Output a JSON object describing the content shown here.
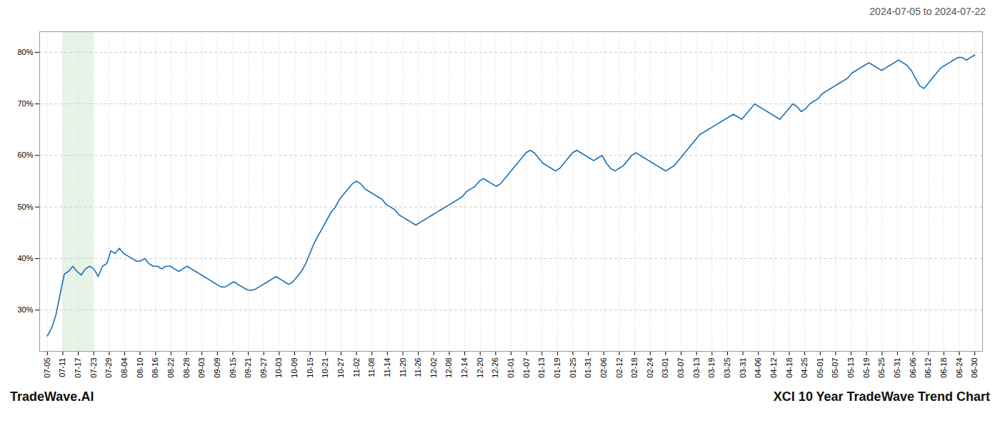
{
  "chart_data": {
    "type": "line",
    "title": "XCI 10 Year TradeWave Trend Chart",
    "subtitle": "2024-07-05 to 2024-07-22",
    "annotations": [
      "TradeWave.AI"
    ],
    "color": "#1a6eb5",
    "grid": true,
    "highlight": {
      "start": 1,
      "end": 3,
      "color": "#c8e6c9"
    },
    "xlim": [
      -0.5,
      60.5
    ],
    "xticks": [
      {
        "value": 0,
        "label": "07-05"
      },
      {
        "value": 1,
        "label": "07-11"
      },
      {
        "value": 2,
        "label": "07-17"
      },
      {
        "value": 3,
        "label": "07-23"
      },
      {
        "value": 4,
        "label": "07-29"
      },
      {
        "value": 5,
        "label": "08-04"
      },
      {
        "value": 6,
        "label": "08-10"
      },
      {
        "value": 7,
        "label": "08-16"
      },
      {
        "value": 8,
        "label": "08-22"
      },
      {
        "value": 9,
        "label": "08-28"
      },
      {
        "value": 10,
        "label": "09-03"
      },
      {
        "value": 11,
        "label": "09-09"
      },
      {
        "value": 12,
        "label": "09-15"
      },
      {
        "value": 13,
        "label": "09-21"
      },
      {
        "value": 14,
        "label": "09-27"
      },
      {
        "value": 15,
        "label": "10-03"
      },
      {
        "value": 16,
        "label": "10-09"
      },
      {
        "value": 17,
        "label": "10-15"
      },
      {
        "value": 18,
        "label": "10-21"
      },
      {
        "value": 19,
        "label": "10-27"
      },
      {
        "value": 20,
        "label": "11-02"
      },
      {
        "value": 21,
        "label": "11-08"
      },
      {
        "value": 22,
        "label": "11-14"
      },
      {
        "value": 23,
        "label": "11-20"
      },
      {
        "value": 24,
        "label": "11-26"
      },
      {
        "value": 25,
        "label": "12-02"
      },
      {
        "value": 26,
        "label": "12-08"
      },
      {
        "value": 27,
        "label": "12-14"
      },
      {
        "value": 28,
        "label": "12-20"
      },
      {
        "value": 29,
        "label": "12-26"
      },
      {
        "value": 30,
        "label": "01-01"
      },
      {
        "value": 31,
        "label": "01-07"
      },
      {
        "value": 32,
        "label": "01-13"
      },
      {
        "value": 33,
        "label": "01-19"
      },
      {
        "value": 34,
        "label": "01-25"
      },
      {
        "value": 35,
        "label": "01-31"
      },
      {
        "value": 36,
        "label": "02-06"
      },
      {
        "value": 37,
        "label": "02-12"
      },
      {
        "value": 38,
        "label": "02-18"
      },
      {
        "value": 39,
        "label": "02-24"
      },
      {
        "value": 40,
        "label": "03-01"
      },
      {
        "value": 41,
        "label": "03-07"
      },
      {
        "value": 42,
        "label": "03-13"
      },
      {
        "value": 43,
        "label": "03-19"
      },
      {
        "value": 44,
        "label": "03-25"
      },
      {
        "value": 45,
        "label": "03-31"
      },
      {
        "value": 46,
        "label": "04-06"
      },
      {
        "value": 47,
        "label": "04-12"
      },
      {
        "value": 48,
        "label": "04-18"
      },
      {
        "value": 49,
        "label": "04-25"
      },
      {
        "value": 50,
        "label": "05-01"
      },
      {
        "value": 51,
        "label": "05-07"
      },
      {
        "value": 52,
        "label": "05-13"
      },
      {
        "value": 53,
        "label": "05-19"
      },
      {
        "value": 54,
        "label": "05-25"
      },
      {
        "value": 55,
        "label": "05-31"
      },
      {
        "value": 56,
        "label": "06-06"
      },
      {
        "value": 57,
        "label": "06-12"
      },
      {
        "value": 58,
        "label": "06-18"
      },
      {
        "value": 59,
        "label": "06-24"
      },
      {
        "value": 60,
        "label": "06-30"
      }
    ],
    "ylim": [
      22,
      84
    ],
    "yticks": [
      {
        "value": 30,
        "label": "30%"
      },
      {
        "value": 40,
        "label": "40%"
      },
      {
        "value": 50,
        "label": "50%"
      },
      {
        "value": 60,
        "label": "60%"
      },
      {
        "value": 70,
        "label": "70%"
      },
      {
        "value": 80,
        "label": "80%"
      }
    ],
    "values": [
      25.0,
      26.5,
      29.0,
      33.0,
      37.0,
      37.5,
      38.5,
      37.5,
      36.8,
      38.0,
      38.5,
      38.0,
      36.5,
      38.5,
      39.0,
      41.5,
      41.0,
      42.0,
      41.0,
      40.5,
      40.0,
      39.5,
      39.5,
      40.0,
      39.0,
      38.5,
      38.5,
      38.0,
      38.5,
      38.5,
      38.0,
      37.5,
      38.0,
      38.5,
      38.0,
      37.5,
      37.0,
      36.5,
      36.0,
      35.5,
      35.0,
      34.5,
      34.5,
      35.0,
      35.5,
      35.0,
      34.5,
      34.0,
      33.8,
      34.0,
      34.5,
      35.0,
      35.5,
      36.0,
      36.5,
      36.0,
      35.5,
      35.0,
      35.5,
      36.5,
      37.5,
      39.0,
      41.0,
      43.0,
      44.5,
      46.0,
      47.5,
      49.0,
      50.0,
      51.5,
      52.5,
      53.5,
      54.5,
      55.0,
      54.5,
      53.5,
      53.0,
      52.5,
      52.0,
      51.5,
      50.5,
      50.0,
      49.5,
      48.5,
      48.0,
      47.5,
      47.0,
      46.5,
      47.0,
      47.5,
      48.0,
      48.5,
      49.0,
      49.5,
      50.0,
      50.5,
      51.0,
      51.5,
      52.0,
      53.0,
      53.5,
      54.0,
      55.0,
      55.5,
      55.0,
      54.5,
      54.0,
      54.5,
      55.5,
      56.5,
      57.5,
      58.5,
      59.5,
      60.5,
      61.0,
      60.5,
      59.5,
      58.5,
      58.0,
      57.5,
      57.0,
      57.5,
      58.5,
      59.5,
      60.5,
      61.0,
      60.5,
      60.0,
      59.5,
      59.0,
      59.5,
      60.0,
      58.5,
      57.5,
      57.0,
      57.5,
      58.0,
      59.0,
      60.0,
      60.5,
      60.0,
      59.5,
      59.0,
      58.5,
      58.0,
      57.5,
      57.0,
      57.5,
      58.0,
      59.0,
      60.0,
      61.0,
      62.0,
      63.0,
      64.0,
      64.5,
      65.0,
      65.5,
      66.0,
      66.5,
      67.0,
      67.5,
      68.0,
      67.5,
      67.0,
      68.0,
      69.0,
      70.0,
      69.5,
      69.0,
      68.5,
      68.0,
      67.5,
      67.0,
      68.0,
      69.0,
      70.0,
      69.5,
      68.5,
      69.0,
      70.0,
      70.5,
      71.0,
      72.0,
      72.5,
      73.0,
      73.5,
      74.0,
      74.5,
      75.0,
      76.0,
      76.5,
      77.0,
      77.5,
      78.0,
      77.5,
      77.0,
      76.5,
      77.0,
      77.5,
      78.0,
      78.5,
      78.0,
      77.5,
      76.5,
      75.0,
      73.5,
      73.0,
      74.0,
      75.0,
      76.0,
      77.0,
      77.5,
      78.0,
      78.5,
      79.0,
      79.0,
      78.5,
      79.0,
      79.5
    ]
  }
}
